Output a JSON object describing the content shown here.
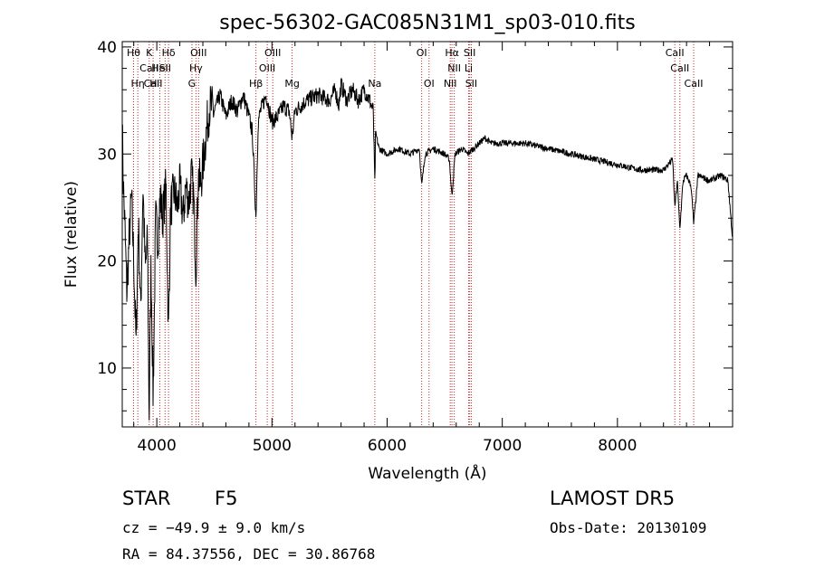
{
  "chart_data": {
    "type": "line",
    "title": "spec-56302-GAC085N31M1_sp03-010.fits",
    "xlabel": "Wavelength (Å)",
    "ylabel": "Flux (relative)",
    "xlim": [
      3700,
      9000
    ],
    "ylim": [
      4.5,
      40.5
    ],
    "x_ticks": [
      4000,
      5000,
      6000,
      7000,
      8000
    ],
    "y_ticks": [
      10,
      20,
      30,
      40
    ],
    "grid": false,
    "line_color": "#000000",
    "marker_color": "#cc2222",
    "spectrum_anchors": [
      [
        3700,
        32.5
      ],
      [
        3710,
        27.0
      ],
      [
        3720,
        24.0
      ],
      [
        3740,
        17.0
      ],
      [
        3760,
        22.0
      ],
      [
        3780,
        26.0
      ],
      [
        3800,
        20.0
      ],
      [
        3820,
        12.0
      ],
      [
        3840,
        24.0
      ],
      [
        3860,
        15.0
      ],
      [
        3880,
        27.0
      ],
      [
        3900,
        19.0
      ],
      [
        3920,
        22.0
      ],
      [
        3933,
        5.0
      ],
      [
        3950,
        20.0
      ],
      [
        3968,
        7.0
      ],
      [
        3990,
        24.0
      ],
      [
        4010,
        22.0
      ],
      [
        4030,
        26.0
      ],
      [
        4050,
        24.0
      ],
      [
        4080,
        27.0
      ],
      [
        4101,
        13.0
      ],
      [
        4120,
        25.0
      ],
      [
        4150,
        26.5
      ],
      [
        4180,
        25.0
      ],
      [
        4200,
        27.0
      ],
      [
        4230,
        24.0
      ],
      [
        4250,
        27.0
      ],
      [
        4280,
        25.5
      ],
      [
        4300,
        28.0
      ],
      [
        4320,
        26.0
      ],
      [
        4340,
        19.0
      ],
      [
        4360,
        28.0
      ],
      [
        4380,
        27.0
      ],
      [
        4400,
        29.0
      ],
      [
        4420,
        31.0
      ],
      [
        4440,
        33.0
      ],
      [
        4460,
        34.5
      ],
      [
        4500,
        34.0
      ],
      [
        4550,
        35.5
      ],
      [
        4600,
        33.5
      ],
      [
        4650,
        35.0
      ],
      [
        4700,
        34.0
      ],
      [
        4750,
        35.5
      ],
      [
        4800,
        33.5
      ],
      [
        4830,
        32.0
      ],
      [
        4861,
        24.0
      ],
      [
        4880,
        33.0
      ],
      [
        4900,
        34.0
      ],
      [
        4950,
        35.5
      ],
      [
        5000,
        33.0
      ],
      [
        5050,
        33.5
      ],
      [
        5100,
        34.5
      ],
      [
        5150,
        34.0
      ],
      [
        5175,
        31.5
      ],
      [
        5200,
        34.0
      ],
      [
        5300,
        35.0
      ],
      [
        5400,
        35.5
      ],
      [
        5500,
        35.0
      ],
      [
        5550,
        36.0
      ],
      [
        5580,
        34.5
      ],
      [
        5600,
        36.5
      ],
      [
        5650,
        35.0
      ],
      [
        5700,
        36.0
      ],
      [
        5750,
        35.0
      ],
      [
        5800,
        36.0
      ],
      [
        5850,
        35.0
      ],
      [
        5880,
        34.0
      ],
      [
        5893,
        27.0
      ],
      [
        5900,
        32.0
      ],
      [
        5930,
        30.5
      ],
      [
        6000,
        30.0
      ],
      [
        6100,
        30.5
      ],
      [
        6200,
        30.0
      ],
      [
        6280,
        30.5
      ],
      [
        6300,
        27.0
      ],
      [
        6330,
        30.0
      ],
      [
        6400,
        30.5
      ],
      [
        6500,
        30.0
      ],
      [
        6540,
        29.5
      ],
      [
        6563,
        26.0
      ],
      [
        6590,
        30.0
      ],
      [
        6650,
        30.5
      ],
      [
        6700,
        30.0
      ],
      [
        6750,
        30.5
      ],
      [
        6800,
        31.0
      ],
      [
        6850,
        31.5
      ],
      [
        6900,
        31.0
      ],
      [
        7000,
        31.0
      ],
      [
        7200,
        31.0
      ],
      [
        7400,
        30.5
      ],
      [
        7600,
        30.0
      ],
      [
        7800,
        29.5
      ],
      [
        8000,
        29.0
      ],
      [
        8200,
        28.5
      ],
      [
        8400,
        28.5
      ],
      [
        8480,
        29.5
      ],
      [
        8498,
        25.0
      ],
      [
        8520,
        27.5
      ],
      [
        8542,
        23.0
      ],
      [
        8570,
        27.5
      ],
      [
        8600,
        28.0
      ],
      [
        8640,
        27.0
      ],
      [
        8662,
        23.5
      ],
      [
        8700,
        28.0
      ],
      [
        8800,
        27.5
      ],
      [
        8900,
        28.0
      ],
      [
        8960,
        27.5
      ],
      [
        9000,
        22.0
      ]
    ],
    "lines": [
      {
        "label": "Hθ",
        "wl": 3798,
        "row": 0
      },
      {
        "label": "K",
        "wl": 3934,
        "row": 0
      },
      {
        "label": "Hδ",
        "wl": 4102,
        "row": 0
      },
      {
        "label": "OIII",
        "wl": 4363,
        "row": 0
      },
      {
        "label": "OIII",
        "wl": 5007,
        "row": 0
      },
      {
        "label": "OI",
        "wl": 6300,
        "row": 0
      },
      {
        "label": "Hα",
        "wl": 6563,
        "row": 0
      },
      {
        "label": "SII",
        "wl": 6717,
        "row": 0
      },
      {
        "label": "CaII",
        "wl": 8498,
        "row": 0
      },
      {
        "label": "CaII",
        "wl": 3933,
        "row": 1
      },
      {
        "label": "HeI",
        "wl": 4026,
        "row": 1
      },
      {
        "label": "SII",
        "wl": 4072,
        "row": 1
      },
      {
        "label": "Hγ",
        "wl": 4340,
        "row": 1
      },
      {
        "label": "OIII",
        "wl": 4959,
        "row": 1
      },
      {
        "label": "NII",
        "wl": 6583,
        "row": 1
      },
      {
        "label": "Li",
        "wl": 6708,
        "row": 1
      },
      {
        "label": "CaII",
        "wl": 8542,
        "row": 1
      },
      {
        "label": "CaII",
        "wl": 3968,
        "row": 2
      },
      {
        "label": "Hη",
        "wl": 3835,
        "row": 2
      },
      {
        "label": "H",
        "wl": 3970,
        "row": 2
      },
      {
        "label": "G",
        "wl": 4305,
        "row": 2
      },
      {
        "label": "Hβ",
        "wl": 4861,
        "row": 2
      },
      {
        "label": "Mg",
        "wl": 5175,
        "row": 2
      },
      {
        "label": "Na",
        "wl": 5893,
        "row": 2
      },
      {
        "label": "OI",
        "wl": 6364,
        "row": 2
      },
      {
        "label": "NII",
        "wl": 6548,
        "row": 2
      },
      {
        "label": "SII",
        "wl": 6731,
        "row": 2
      },
      {
        "label": "CaII",
        "wl": 8662,
        "row": 2
      }
    ]
  },
  "info": {
    "class": "STAR",
    "subclass": "F5",
    "survey": "LAMOST DR5",
    "velocity": "cz = −49.9 ± 9.0 km/s",
    "obs_date": "Obs-Date: 20130109",
    "coords": "RA =  84.37556, DEC =  30.86768"
  }
}
